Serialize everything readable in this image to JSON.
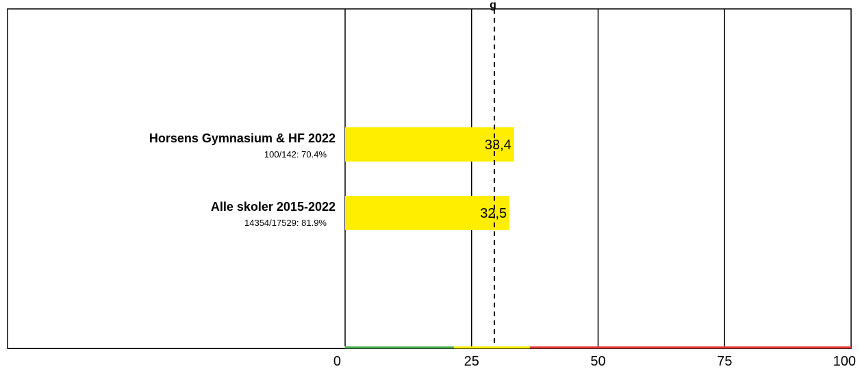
{
  "chart_data": {
    "type": "bar",
    "orientation": "horizontal",
    "title": "g",
    "categories": [
      {
        "label": "Horsens Gymnasium & HF 2022",
        "sublabel": "100/142: 70.4%"
      },
      {
        "label": "Alle skoler 2015-2022",
        "sublabel": "14354/17529: 81.9%"
      }
    ],
    "values": [
      33.4,
      32.5
    ],
    "value_labels": [
      "33,4",
      "32,5"
    ],
    "bar_color": "#ffee00",
    "xlim": [
      0,
      100
    ],
    "xticks": [
      0,
      25,
      50,
      75,
      100
    ],
    "xtick_labels": [
      "0",
      "25",
      "50",
      "75",
      "100"
    ],
    "reference_lines": {
      "solid": [
        25,
        50,
        75
      ],
      "dashed": 29.5
    },
    "color_bands": [
      {
        "from": 0,
        "to": 21.5,
        "color": "#4caf50"
      },
      {
        "from": 21.5,
        "to": 36.5,
        "color": "#ffee00"
      },
      {
        "from": 36.5,
        "to": 100,
        "color": "#e53935"
      }
    ]
  }
}
